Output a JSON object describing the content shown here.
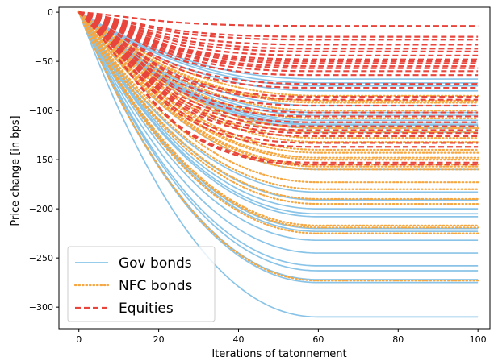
{
  "chart_data": {
    "type": "line",
    "xlabel": "Iterations of tatonnement",
    "ylabel": "Price change [in bps]",
    "xlim": [
      -5,
      103
    ],
    "ylim": [
      -322,
      5
    ],
    "x_ticks": [
      0,
      20,
      40,
      60,
      80,
      100
    ],
    "y_ticks": [
      0,
      -50,
      -100,
      -150,
      -200,
      -250,
      -300
    ],
    "x_tick_labels": [
      "0",
      "20",
      "40",
      "60",
      "80",
      "100"
    ],
    "y_tick_labels": [
      "0",
      "−50",
      "−100",
      "−150",
      "−200",
      "−250",
      "−300"
    ],
    "grid": false,
    "legend_position": "lower-left",
    "x_range_of_lines": [
      0,
      100
    ],
    "series_groups": [
      {
        "name": "Gov bonds",
        "color": "#89c4e8",
        "style": "solid",
        "converge_step": 60,
        "final_values": [
          -68,
          -72,
          -75,
          -80,
          -95,
          -102,
          -105,
          -110,
          -112,
          -114,
          -115,
          -117,
          -118,
          -122,
          -160,
          -183,
          -191,
          -200,
          -205,
          -208,
          -220,
          -223,
          -232,
          -245,
          -258,
          -263,
          -272,
          -275,
          -310
        ]
      },
      {
        "name": "NFC bonds",
        "color": "#f5a742",
        "style": "dotted",
        "converge_step": 60,
        "final_values": [
          -85,
          -90,
          -92,
          -100,
          -108,
          -118,
          -122,
          -128,
          -132,
          -140,
          -143,
          -148,
          -150,
          -155,
          -157,
          -160,
          -173,
          -180,
          -190,
          -195,
          -217,
          -219,
          -225,
          -273
        ]
      },
      {
        "name": "Equities",
        "color": "#e8453c",
        "style": "dashed",
        "converge_step": 60,
        "final_values": [
          -14,
          -25,
          -28,
          -33,
          -37,
          -40,
          -44,
          -48,
          -50,
          -52,
          -55,
          -57,
          -60,
          -64,
          -73,
          -77,
          -86,
          -89,
          -95,
          -102,
          -106,
          -112,
          -116,
          -120,
          -123,
          -126,
          -133,
          -137,
          -153,
          -155
        ]
      }
    ]
  }
}
